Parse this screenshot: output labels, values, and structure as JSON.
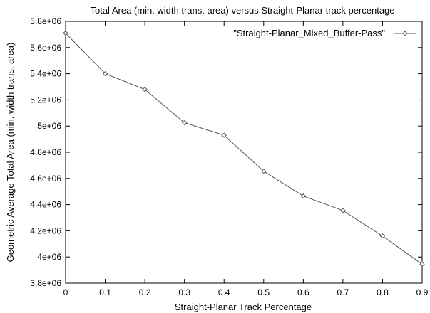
{
  "chart_data": {
    "type": "line",
    "title": "Total Area (min. width trans. area) versus Straight-Planar track percentage",
    "xlabel": "Straight-Planar Track Percentage",
    "ylabel": "Geometric Average Total Area (min. width trans. area)",
    "xlim": [
      0,
      0.9
    ],
    "ylim": [
      3800000,
      5800000
    ],
    "x_ticks": [
      "0",
      "0.1",
      "0.2",
      "0.3",
      "0.4",
      "0.5",
      "0.6",
      "0.7",
      "0.8",
      "0.9"
    ],
    "y_ticks": [
      "3.8e+06",
      "4e+06",
      "4.2e+06",
      "4.4e+06",
      "4.6e+06",
      "4.8e+06",
      "5e+06",
      "5.2e+06",
      "5.4e+06",
      "5.6e+06",
      "5.8e+06"
    ],
    "grid": false,
    "legend_position": "top-right",
    "series": [
      {
        "name": "\"Straight-Planar_Mixed_Buffer-Pass\"",
        "color": "#555555",
        "marker": "diamond",
        "x": [
          0,
          0.1,
          0.2,
          0.3,
          0.4,
          0.5,
          0.6,
          0.7,
          0.8,
          0.9
        ],
        "y": [
          5710000,
          5400000,
          5280000,
          5025000,
          4930000,
          4655000,
          4465000,
          4355000,
          4160000,
          3945000
        ]
      }
    ]
  }
}
